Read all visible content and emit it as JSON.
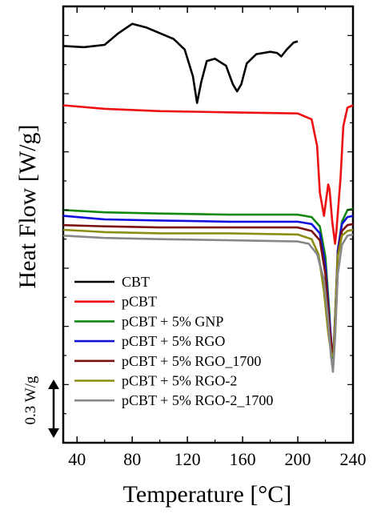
{
  "chart_data": {
    "type": "line",
    "xlabel": "Temperature [°C]",
    "ylabel": "Heat Flow [W/g]",
    "xlim": [
      30,
      240
    ],
    "x_ticks": [
      40,
      80,
      120,
      160,
      200,
      240
    ],
    "y_ticks_labeled": false,
    "grid": false,
    "legend_placement": "bottom-right",
    "scale_bar": {
      "label": "0.3 W/g",
      "value": 0.3
    },
    "series": [
      {
        "name": "CBT",
        "color": "#000000",
        "x": [
          30,
          45,
          60,
          70,
          80,
          90,
          100,
          110,
          118,
          124,
          127,
          130,
          134,
          140,
          148,
          153,
          156,
          159,
          163,
          170,
          180,
          185,
          188,
          192,
          197,
          200
        ],
        "y": [
          3.41,
          3.4,
          3.42,
          3.52,
          3.6,
          3.57,
          3.52,
          3.47,
          3.38,
          3.15,
          2.92,
          3.1,
          3.28,
          3.3,
          3.24,
          3.08,
          3.02,
          3.08,
          3.26,
          3.34,
          3.36,
          3.35,
          3.32,
          3.38,
          3.44,
          3.45
        ]
      },
      {
        "name": "pCBT",
        "color": "#ee1111",
        "x": [
          30,
          60,
          100,
          150,
          200,
          210,
          214,
          216,
          219,
          222,
          223,
          225,
          227,
          228,
          231,
          233,
          236,
          240
        ],
        "y": [
          2.9,
          2.87,
          2.85,
          2.84,
          2.83,
          2.78,
          2.55,
          2.15,
          1.95,
          2.22,
          2.18,
          1.9,
          1.71,
          1.82,
          2.28,
          2.72,
          2.88,
          2.9
        ]
      },
      {
        "name": "pCBT + 5% GNP",
        "color": "#118811",
        "x": [
          30,
          60,
          100,
          150,
          200,
          210,
          216,
          220,
          223,
          224.5,
          226,
          227.5,
          229,
          232,
          236,
          240
        ],
        "y": [
          2.0,
          1.98,
          1.97,
          1.96,
          1.96,
          1.94,
          1.86,
          1.6,
          1.1,
          0.72,
          0.75,
          1.18,
          1.65,
          1.9,
          2.0,
          2.01
        ]
      },
      {
        "name": "pCBT + 5% RGO",
        "color": "#1111dd",
        "x": [
          30,
          60,
          100,
          150,
          200,
          210,
          216,
          220,
          223,
          225,
          226,
          227.5,
          229,
          232,
          236,
          240
        ],
        "y": [
          1.95,
          1.92,
          1.91,
          1.9,
          1.9,
          1.88,
          1.8,
          1.52,
          1.05,
          0.78,
          0.8,
          1.22,
          1.65,
          1.88,
          1.94,
          1.95
        ]
      },
      {
        "name": "pCBT + 5% RGO_1700",
        "color": "#7a1010",
        "x": [
          30,
          60,
          100,
          150,
          200,
          210,
          216,
          220,
          223,
          225,
          226,
          227.5,
          229,
          232,
          236,
          240
        ],
        "y": [
          1.87,
          1.86,
          1.85,
          1.85,
          1.85,
          1.82,
          1.74,
          1.45,
          1.0,
          0.78,
          0.8,
          1.2,
          1.62,
          1.82,
          1.87,
          1.88
        ]
      },
      {
        "name": "pCBT + 5% RGO-2",
        "color": "#8c8c10",
        "x": [
          30,
          60,
          100,
          150,
          200,
          210,
          215,
          219,
          222,
          224.5,
          226,
          227.5,
          229,
          232,
          236,
          240
        ],
        "y": [
          1.83,
          1.81,
          1.8,
          1.8,
          1.79,
          1.75,
          1.62,
          1.3,
          0.95,
          0.74,
          0.77,
          1.2,
          1.6,
          1.78,
          1.82,
          1.83
        ]
      },
      {
        "name": "pCBT + 5% RGO-2_1700",
        "color": "#888888",
        "x": [
          30,
          60,
          100,
          150,
          200,
          208,
          214,
          219,
          222,
          224,
          225.5,
          227,
          229,
          232,
          236,
          240
        ],
        "y": [
          1.78,
          1.76,
          1.75,
          1.74,
          1.73,
          1.71,
          1.62,
          1.4,
          1.05,
          0.75,
          0.61,
          0.9,
          1.45,
          1.7,
          1.78,
          1.79
        ]
      }
    ]
  }
}
